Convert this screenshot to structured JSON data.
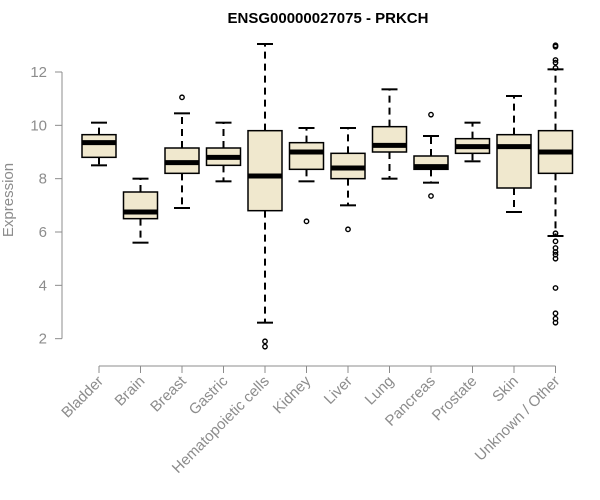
{
  "chart_data": {
    "type": "box",
    "title": "ENSG00000027075 - PRKCH",
    "xlabel": "",
    "ylabel": "Expression",
    "ylim": [
      1.5,
      13.2
    ],
    "yticks": [
      2,
      4,
      6,
      8,
      10,
      12
    ],
    "ytick_labels": [
      "2",
      "4",
      "6",
      "8",
      "10",
      "12"
    ],
    "categories": [
      "Bladder",
      "Brain",
      "Breast",
      "Gastric",
      "Hematopoietic cells",
      "Kidney",
      "Liver",
      "Lung",
      "Pancreas",
      "Prostate",
      "Skin",
      "Unknown / Other"
    ],
    "boxes": [
      {
        "category": "Bladder",
        "min": 8.5,
        "q1": 8.8,
        "median": 9.35,
        "q3": 9.65,
        "max": 10.1,
        "outliers": []
      },
      {
        "category": "Brain",
        "min": 5.6,
        "q1": 6.5,
        "median": 6.75,
        "q3": 7.5,
        "max": 8.0,
        "outliers": []
      },
      {
        "category": "Breast",
        "min": 6.9,
        "q1": 8.2,
        "median": 8.6,
        "q3": 9.15,
        "max": 10.45,
        "outliers": [
          11.05
        ]
      },
      {
        "category": "Gastric",
        "min": 7.9,
        "q1": 8.5,
        "median": 8.8,
        "q3": 9.15,
        "max": 10.1,
        "outliers": []
      },
      {
        "category": "Hematopoietic cells",
        "min": 2.6,
        "q1": 6.8,
        "median": 8.1,
        "q3": 9.8,
        "max": 13.05,
        "outliers": [
          1.9,
          1.7
        ]
      },
      {
        "category": "Kidney",
        "min": 7.9,
        "q1": 8.35,
        "median": 9.0,
        "q3": 9.35,
        "max": 9.9,
        "outliers": [
          6.4
        ]
      },
      {
        "category": "Liver",
        "min": 7.0,
        "q1": 8.0,
        "median": 8.4,
        "q3": 8.95,
        "max": 9.9,
        "outliers": [
          6.1
        ]
      },
      {
        "category": "Lung",
        "min": 8.0,
        "q1": 9.0,
        "median": 9.25,
        "q3": 9.95,
        "max": 11.35,
        "outliers": []
      },
      {
        "category": "Pancreas",
        "min": 7.85,
        "q1": 8.35,
        "median": 8.45,
        "q3": 8.85,
        "max": 9.6,
        "outliers": [
          10.4,
          7.35
        ]
      },
      {
        "category": "Prostate",
        "min": 8.65,
        "q1": 8.95,
        "median": 9.2,
        "q3": 9.5,
        "max": 10.1,
        "outliers": []
      },
      {
        "category": "Skin",
        "min": 6.75,
        "q1": 7.65,
        "median": 9.2,
        "q3": 9.65,
        "max": 11.1,
        "outliers": []
      },
      {
        "category": "Unknown / Other",
        "min": 5.85,
        "q1": 8.2,
        "median": 9.0,
        "q3": 9.8,
        "max": 12.1,
        "outliers": [
          13.0,
          12.95,
          12.45,
          12.35,
          12.15,
          5.95,
          5.65,
          5.4,
          5.25,
          5.15,
          5.0,
          3.9,
          2.95,
          2.75,
          2.6
        ]
      }
    ],
    "box_fill": "#f0e8ce",
    "box_stroke": "#000000",
    "axis_color": "#8c8c8c",
    "grid": false,
    "legend": "none"
  }
}
